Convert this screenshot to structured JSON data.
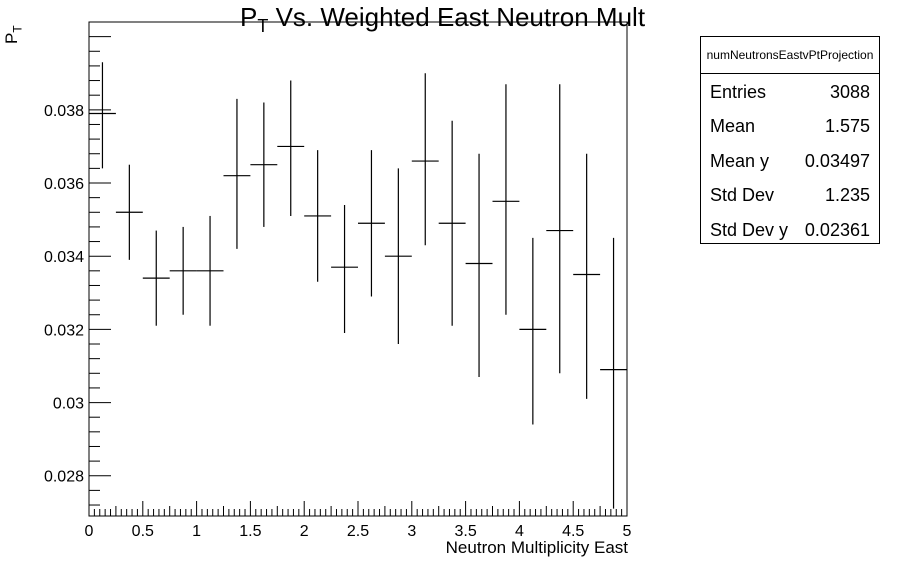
{
  "title_main": "P",
  "title_sub": "T",
  "title_rest": " Vs. Weighted East Neutron Mult",
  "ylabel_main": "P",
  "ylabel_sub": "T",
  "stats": {
    "name": "numNeutronsEastvPtProjection",
    "rows": [
      {
        "key": "Entries",
        "value": "3088"
      },
      {
        "key": "Mean",
        "value": "1.575"
      },
      {
        "key": "Mean y",
        "value": "0.03497"
      },
      {
        "key": "Std Dev",
        "value": "1.235"
      },
      {
        "key": "Std Dev y",
        "value": "0.02361"
      }
    ]
  },
  "chart_data": {
    "type": "scatter",
    "xlabel": "Neutron Multiplicity East",
    "xlim": [
      0,
      5
    ],
    "ylim": [
      0.0269,
      0.0404
    ],
    "x_ticks": [
      0,
      0.5,
      1,
      1.5,
      2,
      2.5,
      3,
      3.5,
      4,
      4.5,
      5
    ],
    "x_tick_labels": [
      "0",
      "0.5",
      "1",
      "1.5",
      "2",
      "2.5",
      "3",
      "3.5",
      "4",
      "4.5",
      "5"
    ],
    "y_ticks": [
      0.028,
      0.03,
      0.032,
      0.034,
      0.036,
      0.038
    ],
    "y_tick_labels": [
      "0.028",
      "0.03",
      "0.032",
      "0.034",
      "0.036",
      "0.038"
    ],
    "bin_width": 0.25,
    "x": [
      0.125,
      0.375,
      0.625,
      0.875,
      1.125,
      1.375,
      1.625,
      1.875,
      2.125,
      2.375,
      2.625,
      2.875,
      3.125,
      3.375,
      3.625,
      3.875,
      4.125,
      4.375,
      4.625,
      4.875
    ],
    "values": [
      0.0379,
      0.0352,
      0.0334,
      0.0336,
      0.0336,
      0.0362,
      0.0365,
      0.037,
      0.0351,
      0.0337,
      0.0349,
      0.034,
      0.0366,
      0.0349,
      0.0338,
      0.0355,
      0.032,
      0.0347,
      0.0335,
      0.0309
    ],
    "y_low": [
      0.0364,
      0.0339,
      0.0321,
      0.0324,
      0.0321,
      0.0342,
      0.0348,
      0.0351,
      0.0333,
      0.0319,
      0.0329,
      0.0316,
      0.0343,
      0.0321,
      0.0307,
      0.0324,
      0.0294,
      0.0308,
      0.0301,
      0.0271
    ],
    "y_high": [
      0.0393,
      0.0365,
      0.0347,
      0.0348,
      0.0351,
      0.0383,
      0.0382,
      0.0388,
      0.0369,
      0.0354,
      0.0369,
      0.0364,
      0.039,
      0.0377,
      0.0368,
      0.0387,
      0.0345,
      0.0387,
      0.0368,
      0.0345
    ],
    "grid": false,
    "legend": "top-right stats box"
  }
}
